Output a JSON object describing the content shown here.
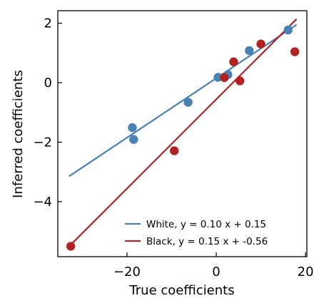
{
  "chart_data": {
    "type": "scatter",
    "xlabel": "True coefficients",
    "ylabel": "Inferred coefficients",
    "xlim": [
      -35.5,
      20.3
    ],
    "ylim": [
      -5.85,
      2.42
    ],
    "xticks": [
      -20,
      0,
      20
    ],
    "xtick_labels": [
      "−20",
      "0",
      "20"
    ],
    "yticks": [
      -4,
      -2,
      0,
      2
    ],
    "ytick_labels": [
      "−4",
      "−2",
      "0",
      "2"
    ],
    "grid": false,
    "legend_position": "bottom-right",
    "series": [
      {
        "name": "White, y = 0.10 x + 0.15",
        "color": "#4682b4",
        "points": [
          {
            "x": -18.8,
            "y": -1.51
          },
          {
            "x": -18.5,
            "y": -1.91
          },
          {
            "x": -6.3,
            "y": -0.66
          },
          {
            "x": 0.4,
            "y": 0.18
          },
          {
            "x": 2.6,
            "y": 0.27
          },
          {
            "x": 7.4,
            "y": 1.08
          },
          {
            "x": 16.1,
            "y": 1.77
          }
        ],
        "fit": {
          "slope": 0.1,
          "intercept": 0.15,
          "x_range": [
            -33.0,
            18.0
          ]
        }
      },
      {
        "name": "Black, y = 0.15 x + -0.56",
        "color": "#b22222",
        "points": [
          {
            "x": -32.6,
            "y": -5.5
          },
          {
            "x": -9.4,
            "y": -2.29
          },
          {
            "x": 1.8,
            "y": 0.17
          },
          {
            "x": 3.9,
            "y": 0.7
          },
          {
            "x": 5.3,
            "y": 0.06
          },
          {
            "x": 10.0,
            "y": 1.3
          },
          {
            "x": 17.6,
            "y": 1.04
          }
        ],
        "fit": {
          "slope": 0.15,
          "intercept": -0.56,
          "x_range": [
            -33.0,
            18.0
          ]
        }
      }
    ]
  }
}
